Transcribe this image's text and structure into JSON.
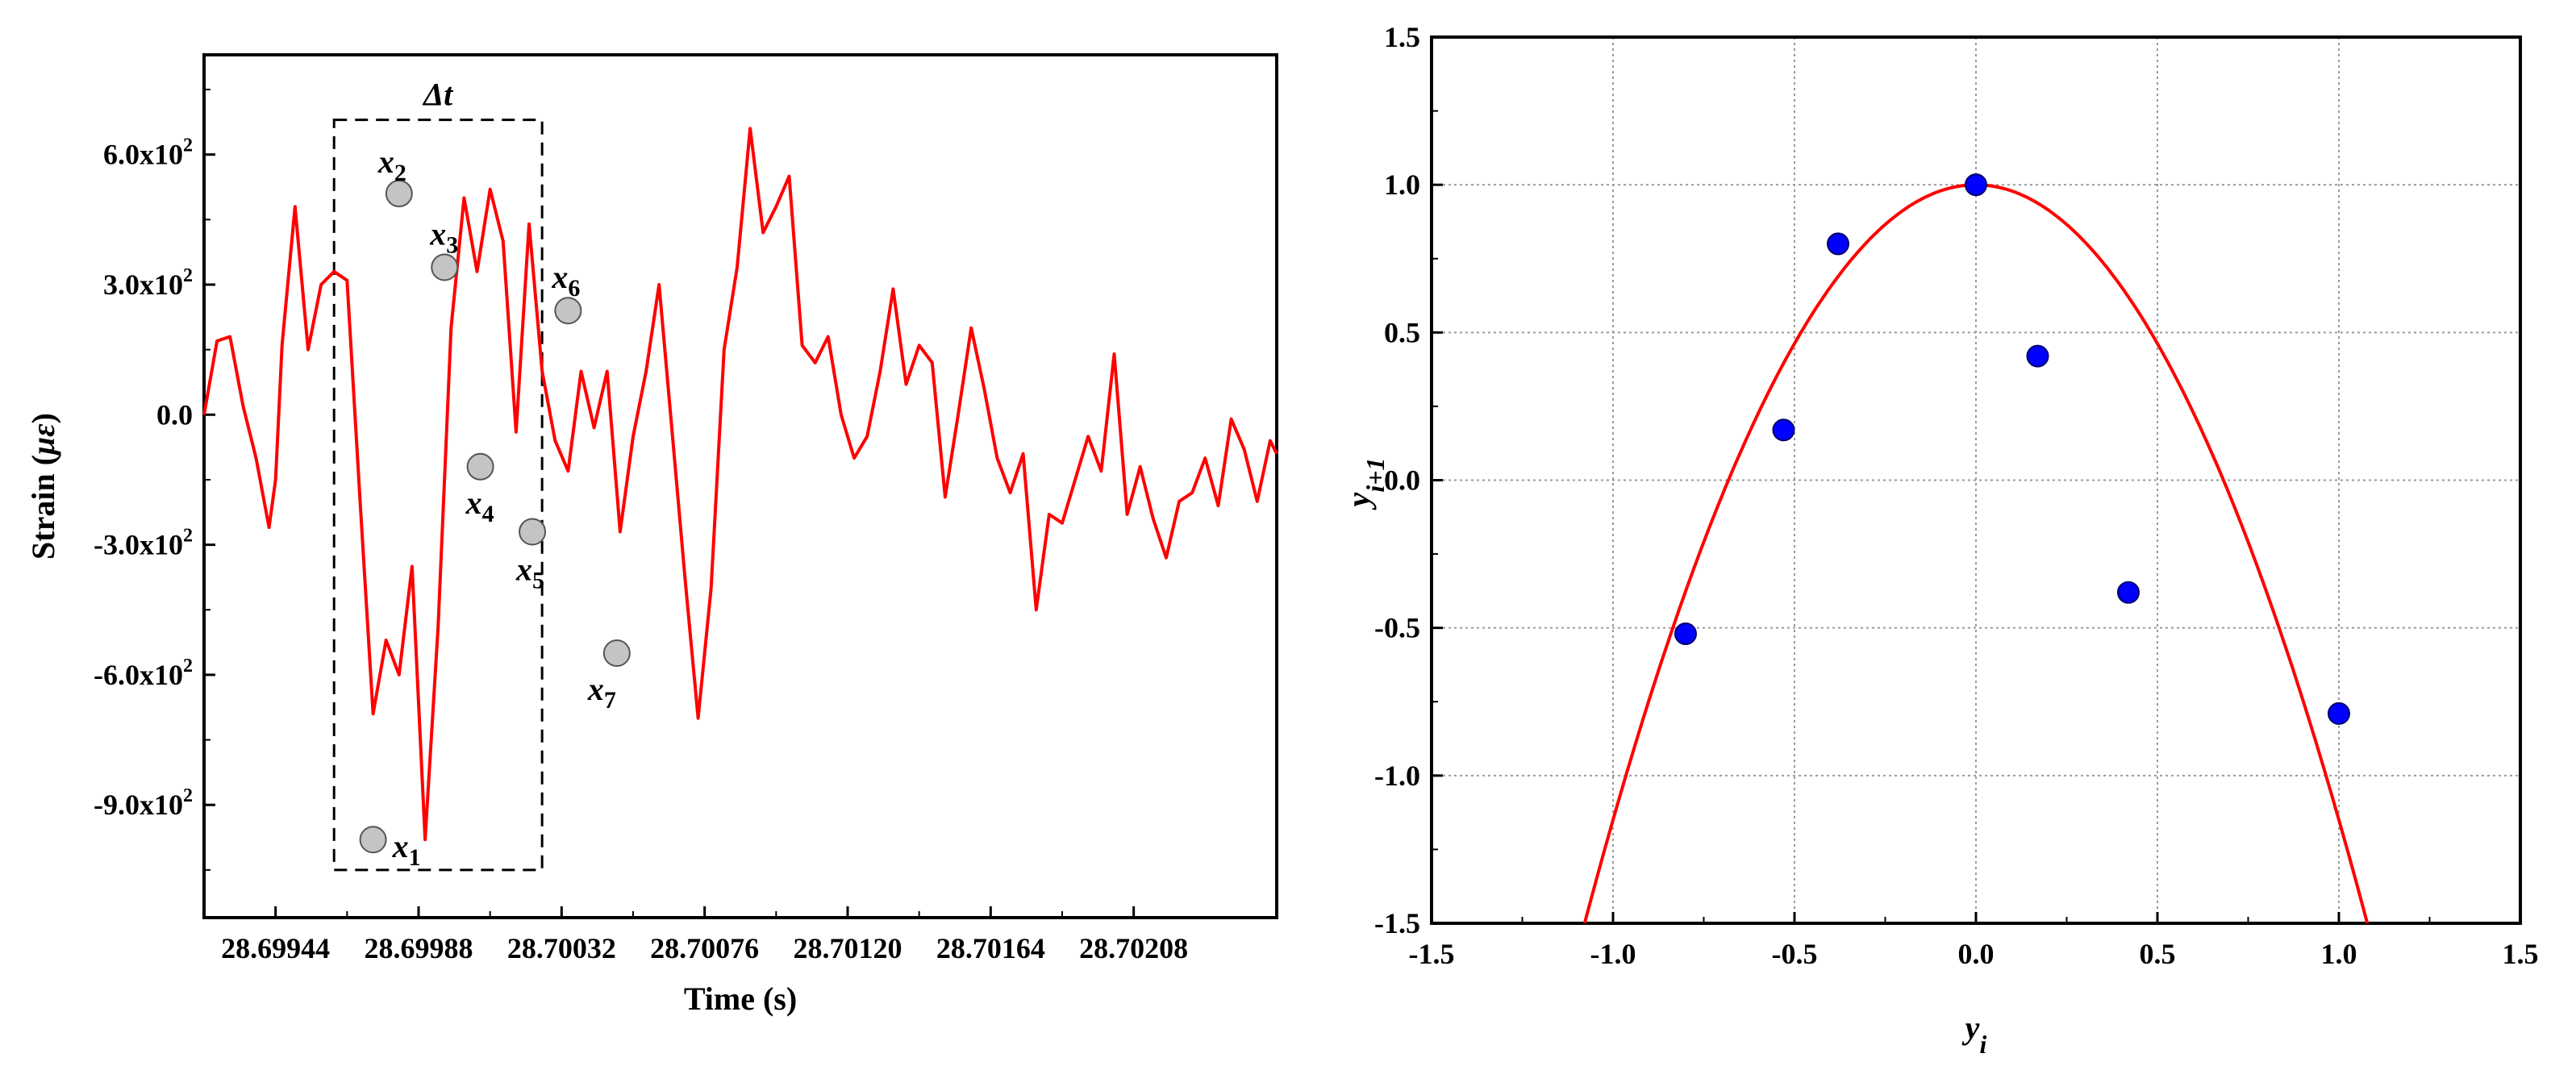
{
  "chart_data": [
    {
      "type": "line",
      "xlabel": "Time (s)",
      "ylabel": "Strain (με)",
      "ylabel_parts": {
        "prefix": "Strain (",
        "symbol": "με",
        "suffix": ")"
      },
      "xlim": [
        28.69922,
        28.70252
      ],
      "ylim": [
        -1160,
        830
      ],
      "x_ticks": [
        28.69944,
        28.69988,
        28.70032,
        28.70076,
        28.7012,
        28.70164,
        28.70208
      ],
      "x_tick_labels": [
        "28.69944",
        "28.69988",
        "28.70032",
        "28.70076",
        "28.70120",
        "28.70164",
        "28.70208"
      ],
      "y_ticks": [
        -900,
        -600,
        -300,
        0,
        300,
        600
      ],
      "y_tick_labels": [
        {
          "mant": "-9.0x10",
          "exp": "2"
        },
        {
          "mant": "-6.0x10",
          "exp": "2"
        },
        {
          "mant": "-3.0x10",
          "exp": "2"
        },
        {
          "mant": "0.0",
          "exp": ""
        },
        {
          "mant": "3.0x10",
          "exp": "2"
        },
        {
          "mant": "6.0x10",
          "exp": "2"
        }
      ],
      "grid": false,
      "series": [
        {
          "color": "#ff0000",
          "x": [
            28.69922,
            28.69926,
            28.6993,
            28.69934,
            28.69938,
            28.69942,
            28.69944,
            28.69946,
            28.6995,
            28.69954,
            28.69958,
            28.69962,
            28.69966,
            28.6997,
            28.69974,
            28.69978,
            28.69982,
            28.69986,
            28.6999,
            28.69994,
            28.69998,
            28.70002,
            28.70006,
            28.7001,
            28.70014,
            28.70018,
            28.70022,
            28.70026,
            28.7003,
            28.70034,
            28.70038,
            28.70042,
            28.70046,
            28.7005,
            28.70054,
            28.70058,
            28.70062,
            28.70066,
            28.7007,
            28.70074,
            28.70078,
            28.70082,
            28.70086,
            28.7009,
            28.70094,
            28.70098,
            28.70102,
            28.70106,
            28.7011,
            28.70114,
            28.70118,
            28.70122,
            28.70126,
            28.7013,
            28.70134,
            28.70138,
            28.70142,
            28.70146,
            28.7015,
            28.70154,
            28.70158,
            28.70162,
            28.70166,
            28.7017,
            28.70174,
            28.70178,
            28.70182,
            28.70186,
            28.7019,
            28.70194,
            28.70198,
            28.70202,
            28.70206,
            28.7021,
            28.70214,
            28.70218,
            28.70222,
            28.70226,
            28.7023,
            28.70234,
            28.70238,
            28.70242,
            28.70246,
            28.7025,
            28.70252
          ],
          "y": [
            0,
            170,
            180,
            20,
            -100,
            -260,
            -150,
            160,
            480,
            150,
            300,
            330,
            310,
            -200,
            -690,
            -520,
            -600,
            -350,
            -980,
            -490,
            200,
            500,
            330,
            520,
            400,
            -40,
            440,
            100,
            -60,
            -130,
            100,
            -30,
            100,
            -270,
            -50,
            100,
            300,
            -40,
            -380,
            -700,
            -400,
            150,
            340,
            660,
            420,
            480,
            550,
            160,
            120,
            180,
            0,
            -100,
            -50,
            100,
            290,
            70,
            160,
            120,
            -190,
            0,
            200,
            60,
            -100,
            -180,
            -90,
            -450,
            -230,
            -250,
            -150,
            -50,
            -130,
            140,
            -230,
            -120,
            -240,
            -330,
            -200,
            -180,
            -100,
            -210,
            -10,
            -80,
            -200,
            -60,
            -90
          ]
        }
      ],
      "annotations": {
        "delta": {
          "text": "Δt",
          "x0": 28.69962,
          "x1": 28.70026,
          "y0": -1050,
          "y1": 680
        },
        "points": [
          {
            "label": "x",
            "sub": "1",
            "x": 28.69974,
            "y": -980
          },
          {
            "label": "x",
            "sub": "2",
            "x": 28.69982,
            "y": 510
          },
          {
            "label": "x",
            "sub": "3",
            "x": 28.69996,
            "y": 340
          },
          {
            "label": "x",
            "sub": "4",
            "x": 28.70007,
            "y": -120
          },
          {
            "label": "x",
            "sub": "5",
            "x": 28.70023,
            "y": -270
          },
          {
            "label": "x",
            "sub": "6",
            "x": 28.70034,
            "y": 240
          },
          {
            "label": "x",
            "sub": "7",
            "x": 28.70049,
            "y": -550
          }
        ]
      }
    },
    {
      "type": "scatter",
      "xlabel": {
        "base": "y",
        "sub": "i"
      },
      "ylabel": {
        "base": "y",
        "sub": "i+1"
      },
      "xlim": [
        -1.5,
        1.5
      ],
      "ylim": [
        -1.5,
        1.5
      ],
      "x_ticks": [
        -1.5,
        -1.0,
        -0.5,
        0.0,
        0.5,
        1.0,
        1.5
      ],
      "x_tick_labels": [
        "-1.5",
        "-1.0",
        "-0.5",
        "0.0",
        "0.5",
        "1.0",
        "1.5"
      ],
      "y_ticks": [
        -1.5,
        -1.0,
        -0.5,
        0.0,
        0.5,
        1.0,
        1.5
      ],
      "y_tick_labels": [
        "-1.5",
        "-1.0",
        "-0.5",
        "0.0",
        "0.5",
        "1.0",
        "1.5"
      ],
      "grid": true,
      "points": [
        {
          "x": -0.8,
          "y": -0.52
        },
        {
          "x": -0.53,
          "y": 0.17
        },
        {
          "x": -0.38,
          "y": 0.8
        },
        {
          "x": 0.0,
          "y": 1.0
        },
        {
          "x": 0.17,
          "y": 0.42
        },
        {
          "x": 0.42,
          "y": -0.38
        },
        {
          "x": 1.0,
          "y": -0.79
        }
      ],
      "point_color": "#0000ff",
      "curve": {
        "equation": "y = 1 - 2.15 x^2",
        "a": 2.15,
        "color": "#ff0000"
      }
    }
  ]
}
